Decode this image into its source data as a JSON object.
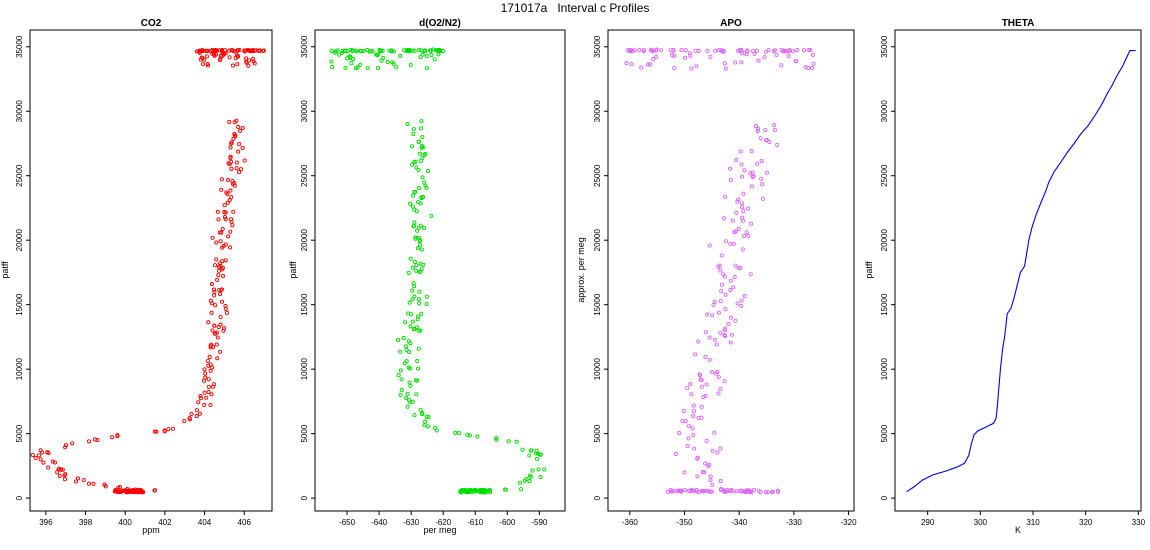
{
  "page_title": "171017a   Interval c Profiles",
  "chart_data": [
    {
      "type": "scatter",
      "title": "CO2",
      "xlabel": "ppm",
      "ylabel": "patff",
      "xlim": [
        395.2,
        407.4
      ],
      "ylim": [
        -1000,
        36300
      ],
      "xticks": [
        396,
        398,
        400,
        402,
        404,
        406
      ],
      "yticks": [
        0,
        5000,
        10000,
        15000,
        20000,
        25000,
        30000,
        35000
      ],
      "series": [
        {
          "color": "#ff0000",
          "marker": "open-circle",
          "profile": [
            [
              400.2,
              500
            ],
            [
              401.5,
              600
            ],
            [
              399.8,
              700
            ],
            [
              399.2,
              900
            ],
            [
              398.5,
              1100
            ],
            [
              397.8,
              1300
            ],
            [
              397.2,
              1600
            ],
            [
              396.8,
              1900
            ],
            [
              396.5,
              2200
            ],
            [
              396.2,
              2600
            ],
            [
              395.8,
              3000
            ],
            [
              395.4,
              3200
            ],
            [
              395.8,
              3500
            ],
            [
              396.6,
              3900
            ],
            [
              397.5,
              4300
            ],
            [
              398.8,
              4600
            ],
            [
              400.2,
              5000
            ],
            [
              401.8,
              5200
            ],
            [
              402.8,
              5600
            ],
            [
              403.5,
              6200
            ],
            [
              403.9,
              7000
            ],
            [
              404.1,
              8000
            ],
            [
              404.3,
              9000
            ],
            [
              404.4,
              10000
            ],
            [
              404.4,
              11000
            ],
            [
              404.5,
              12000
            ],
            [
              404.6,
              13000
            ],
            [
              404.7,
              14000
            ],
            [
              404.7,
              15000
            ],
            [
              404.8,
              16000
            ],
            [
              404.8,
              17000
            ],
            [
              404.8,
              18000
            ],
            [
              404.9,
              19000
            ],
            [
              404.9,
              20000
            ],
            [
              405.0,
              21000
            ],
            [
              405.0,
              22000
            ],
            [
              405.1,
              23000
            ],
            [
              405.2,
              24000
            ],
            [
              405.3,
              25000
            ],
            [
              405.4,
              26000
            ],
            [
              405.5,
              27000
            ],
            [
              405.6,
              28000
            ],
            [
              405.7,
              29000
            ],
            [
              405.6,
              29500
            ]
          ],
          "upper_cluster": {
            "x_range": [
              403.6,
              407.0
            ],
            "y_range": [
              33500,
              34800
            ],
            "base_y": 34700
          }
        }
      ]
    },
    {
      "type": "scatter",
      "title": "d(O2/N2)",
      "xlabel": "per meg",
      "ylabel": "patff",
      "xlim": [
        -660,
        -582
      ],
      "ylim": [
        -1000,
        36300
      ],
      "xticks": [
        -650,
        -640,
        -630,
        -620,
        -610,
        -600,
        -590
      ],
      "yticks": [
        0,
        5000,
        10000,
        15000,
        20000,
        25000,
        30000,
        35000
      ],
      "series": [
        {
          "color": "#00dd00",
          "marker": "open-circle",
          "profile": [
            [
              -610,
              500
            ],
            [
              -598,
              700
            ],
            [
              -592,
              1500
            ],
            [
              -590,
              2500
            ],
            [
              -592,
              3500
            ],
            [
              -596,
              4200
            ],
            [
              -605,
              4600
            ],
            [
              -612,
              4900
            ],
            [
              -620,
              5200
            ],
            [
              -624,
              5600
            ],
            [
              -628,
              6500
            ],
            [
              -630,
              7500
            ],
            [
              -631,
              9000
            ],
            [
              -631,
              11000
            ],
            [
              -630,
              13000
            ],
            [
              -629,
              15000
            ],
            [
              -629,
              17000
            ],
            [
              -628,
              19000
            ],
            [
              -628,
              21000
            ],
            [
              -627,
              23000
            ],
            [
              -627,
              25000
            ],
            [
              -627,
              27000
            ],
            [
              -627,
              28500
            ],
            [
              -628,
              29300
            ]
          ],
          "upper_cluster": {
            "x_range": [
              -655,
              -620
            ],
            "y_range": [
              33300,
              34800
            ],
            "base_y": 34700
          }
        }
      ]
    },
    {
      "type": "scatter",
      "title": "APO",
      "xlabel": "",
      "ylabel": "approx. per meg",
      "xlim": [
        -364,
        -319
      ],
      "ylim": [
        -1000,
        36300
      ],
      "xticks": [
        -360,
        -350,
        -340,
        -330,
        -320
      ],
      "yticks": [
        0,
        5000,
        10000,
        15000,
        20000,
        25000,
        30000,
        35000
      ],
      "series": [
        {
          "color": "#dd66ff",
          "marker": "open-circle",
          "profile": [
            [
              -343,
              500
            ],
            [
              -345,
              1500
            ],
            [
              -347,
              3000
            ],
            [
              -348,
              5000
            ],
            [
              -347,
              7000
            ],
            [
              -346,
              9000
            ],
            [
              -345,
              11000
            ],
            [
              -344,
              13000
            ],
            [
              -343,
              15000
            ],
            [
              -342,
              17000
            ],
            [
              -341,
              19000
            ],
            [
              -340,
              21000
            ],
            [
              -339,
              23000
            ],
            [
              -338,
              25000
            ],
            [
              -337,
              27000
            ],
            [
              -336,
              29000
            ]
          ],
          "upper_cluster": {
            "x_range": [
              -361,
              -326
            ],
            "y_range": [
              33300,
              34800
            ],
            "base_y": 34700
          }
        }
      ]
    },
    {
      "type": "line",
      "title": "THETA",
      "xlabel": "K",
      "ylabel": "patff",
      "xlim": [
        283.8,
        330.5
      ],
      "ylim": [
        -1000,
        36300
      ],
      "xticks": [
        290,
        300,
        310,
        320,
        330
      ],
      "yticks": [
        0,
        5000,
        10000,
        15000,
        20000,
        25000,
        30000,
        35000
      ],
      "series": [
        {
          "color": "#0000ee",
          "points": [
            [
              286.0,
              500
            ],
            [
              287.5,
              900
            ],
            [
              289.0,
              1400
            ],
            [
              291.0,
              1800
            ],
            [
              293.5,
              2100
            ],
            [
              295.5,
              2400
            ],
            [
              297.0,
              2700
            ],
            [
              297.8,
              3300
            ],
            [
              298.3,
              4200
            ],
            [
              298.8,
              4900
            ],
            [
              299.5,
              5200
            ],
            [
              301.0,
              5500
            ],
            [
              302.5,
              5800
            ],
            [
              303.0,
              6200
            ],
            [
              303.2,
              7000
            ],
            [
              303.5,
              8500
            ],
            [
              303.8,
              10000
            ],
            [
              304.2,
              11500
            ],
            [
              304.6,
              12500
            ],
            [
              304.9,
              13500
            ],
            [
              305.1,
              14300
            ],
            [
              305.8,
              14700
            ],
            [
              306.4,
              15500
            ],
            [
              307.0,
              16500
            ],
            [
              307.6,
              17500
            ],
            [
              308.4,
              18000
            ],
            [
              308.8,
              19000
            ],
            [
              309.2,
              20000
            ],
            [
              309.8,
              21000
            ],
            [
              310.6,
              22000
            ],
            [
              311.6,
              23000
            ],
            [
              312.4,
              23800
            ],
            [
              313.0,
              24500
            ],
            [
              314.0,
              25300
            ],
            [
              315.2,
              26000
            ],
            [
              316.5,
              26800
            ],
            [
              317.8,
              27500
            ],
            [
              319.0,
              28200
            ],
            [
              320.5,
              28900
            ],
            [
              321.8,
              29700
            ],
            [
              323.0,
              30500
            ],
            [
              324.0,
              31300
            ],
            [
              325.0,
              32000
            ],
            [
              326.0,
              32800
            ],
            [
              327.0,
              33500
            ],
            [
              327.8,
              34200
            ],
            [
              328.4,
              34700
            ],
            [
              329.5,
              34700
            ]
          ]
        }
      ]
    }
  ]
}
